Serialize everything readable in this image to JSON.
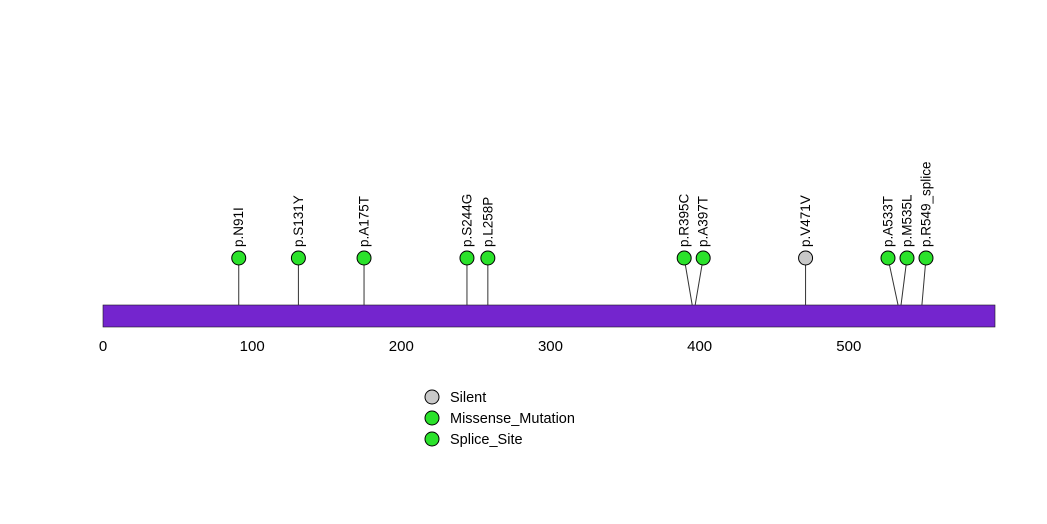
{
  "chart_data": {
    "type": "lollipop",
    "title": "",
    "gene_length": 598,
    "x_ticks": [
      0,
      100,
      200,
      300,
      400,
      500
    ],
    "bar_color": "#7425CE",
    "stem_color": "#333333",
    "type_colors": {
      "Silent": "#C9C9C9",
      "Missense_Mutation": "#2BE22B",
      "Splice_Site": "#2BE22B"
    },
    "mutations": [
      {
        "label": "p.N91I",
        "position": 91,
        "type": "Missense_Mutation"
      },
      {
        "label": "p.S131Y",
        "position": 131,
        "type": "Missense_Mutation"
      },
      {
        "label": "p.A175T",
        "position": 175,
        "type": "Missense_Mutation"
      },
      {
        "label": "p.S244G",
        "position": 244,
        "type": "Missense_Mutation"
      },
      {
        "label": "p.L258P",
        "position": 258,
        "type": "Missense_Mutation"
      },
      {
        "label": "p.R395C",
        "position": 395,
        "type": "Missense_Mutation"
      },
      {
        "label": "p.A397T",
        "position": 397,
        "type": "Missense_Mutation"
      },
      {
        "label": "p.V471V",
        "position": 471,
        "type": "Silent"
      },
      {
        "label": "p.A533T",
        "position": 533,
        "type": "Missense_Mutation"
      },
      {
        "label": "p.M535L",
        "position": 535,
        "type": "Missense_Mutation"
      },
      {
        "label": "p.R549_splice",
        "position": 549,
        "type": "Splice_Site"
      }
    ],
    "legend": [
      {
        "label": "Silent",
        "type": "Silent"
      },
      {
        "label": "Missense_Mutation",
        "type": "Missense_Mutation"
      },
      {
        "label": "Splice_Site",
        "type": "Splice_Site"
      }
    ]
  }
}
